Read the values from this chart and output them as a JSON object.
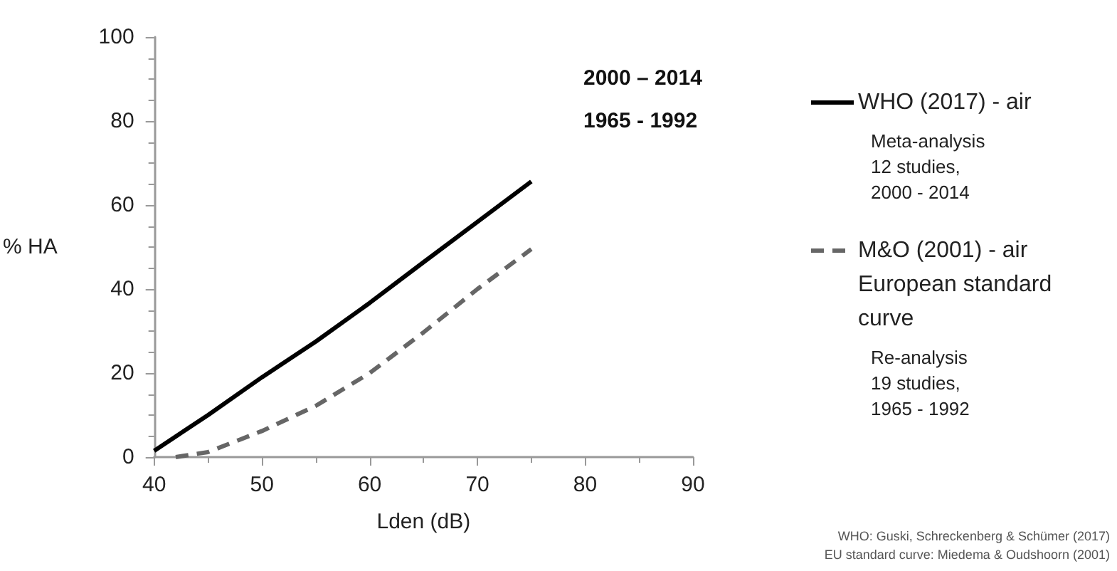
{
  "chart_data": {
    "type": "line",
    "xlabel": "Lden (dB)",
    "ylabel": "% HA",
    "xlim": [
      40,
      90
    ],
    "xticks": [
      40,
      50,
      60,
      70,
      80,
      90
    ],
    "ylim": [
      0,
      100
    ],
    "yticks": [
      0,
      20,
      40,
      60,
      80,
      100
    ],
    "grid": false,
    "legend": "right",
    "marker": "none",
    "series": [
      {
        "name": "WHO (2017) - air",
        "color": "#000000",
        "line_style": "solid",
        "x": [
          40,
          45,
          50,
          55,
          60,
          65,
          70,
          75
        ],
        "values": [
          1.5,
          10,
          19,
          27.5,
          36.7,
          46.4,
          56,
          65.6
        ]
      },
      {
        "name": "M&O (2001) - air European standard curve",
        "color": "#666666",
        "line_style": "dashed",
        "x": [
          42,
          45,
          50,
          55,
          60,
          65,
          70,
          75
        ],
        "values": [
          0,
          1.2,
          6.2,
          12.2,
          20,
          29.7,
          40,
          49.5
        ]
      }
    ],
    "annotations": [
      "2000 – 2014",
      "1965 - 1992",
      "Meta-analysis\n12 studies,\n2000 - 2014",
      "Re-analysis\n19 studies,\n1965 - 1992",
      "WHO: Guski, Schreckenberg & Schümer (2017)",
      "EU standard curve: Miedema & Oudshoorn (2001)"
    ]
  }
}
